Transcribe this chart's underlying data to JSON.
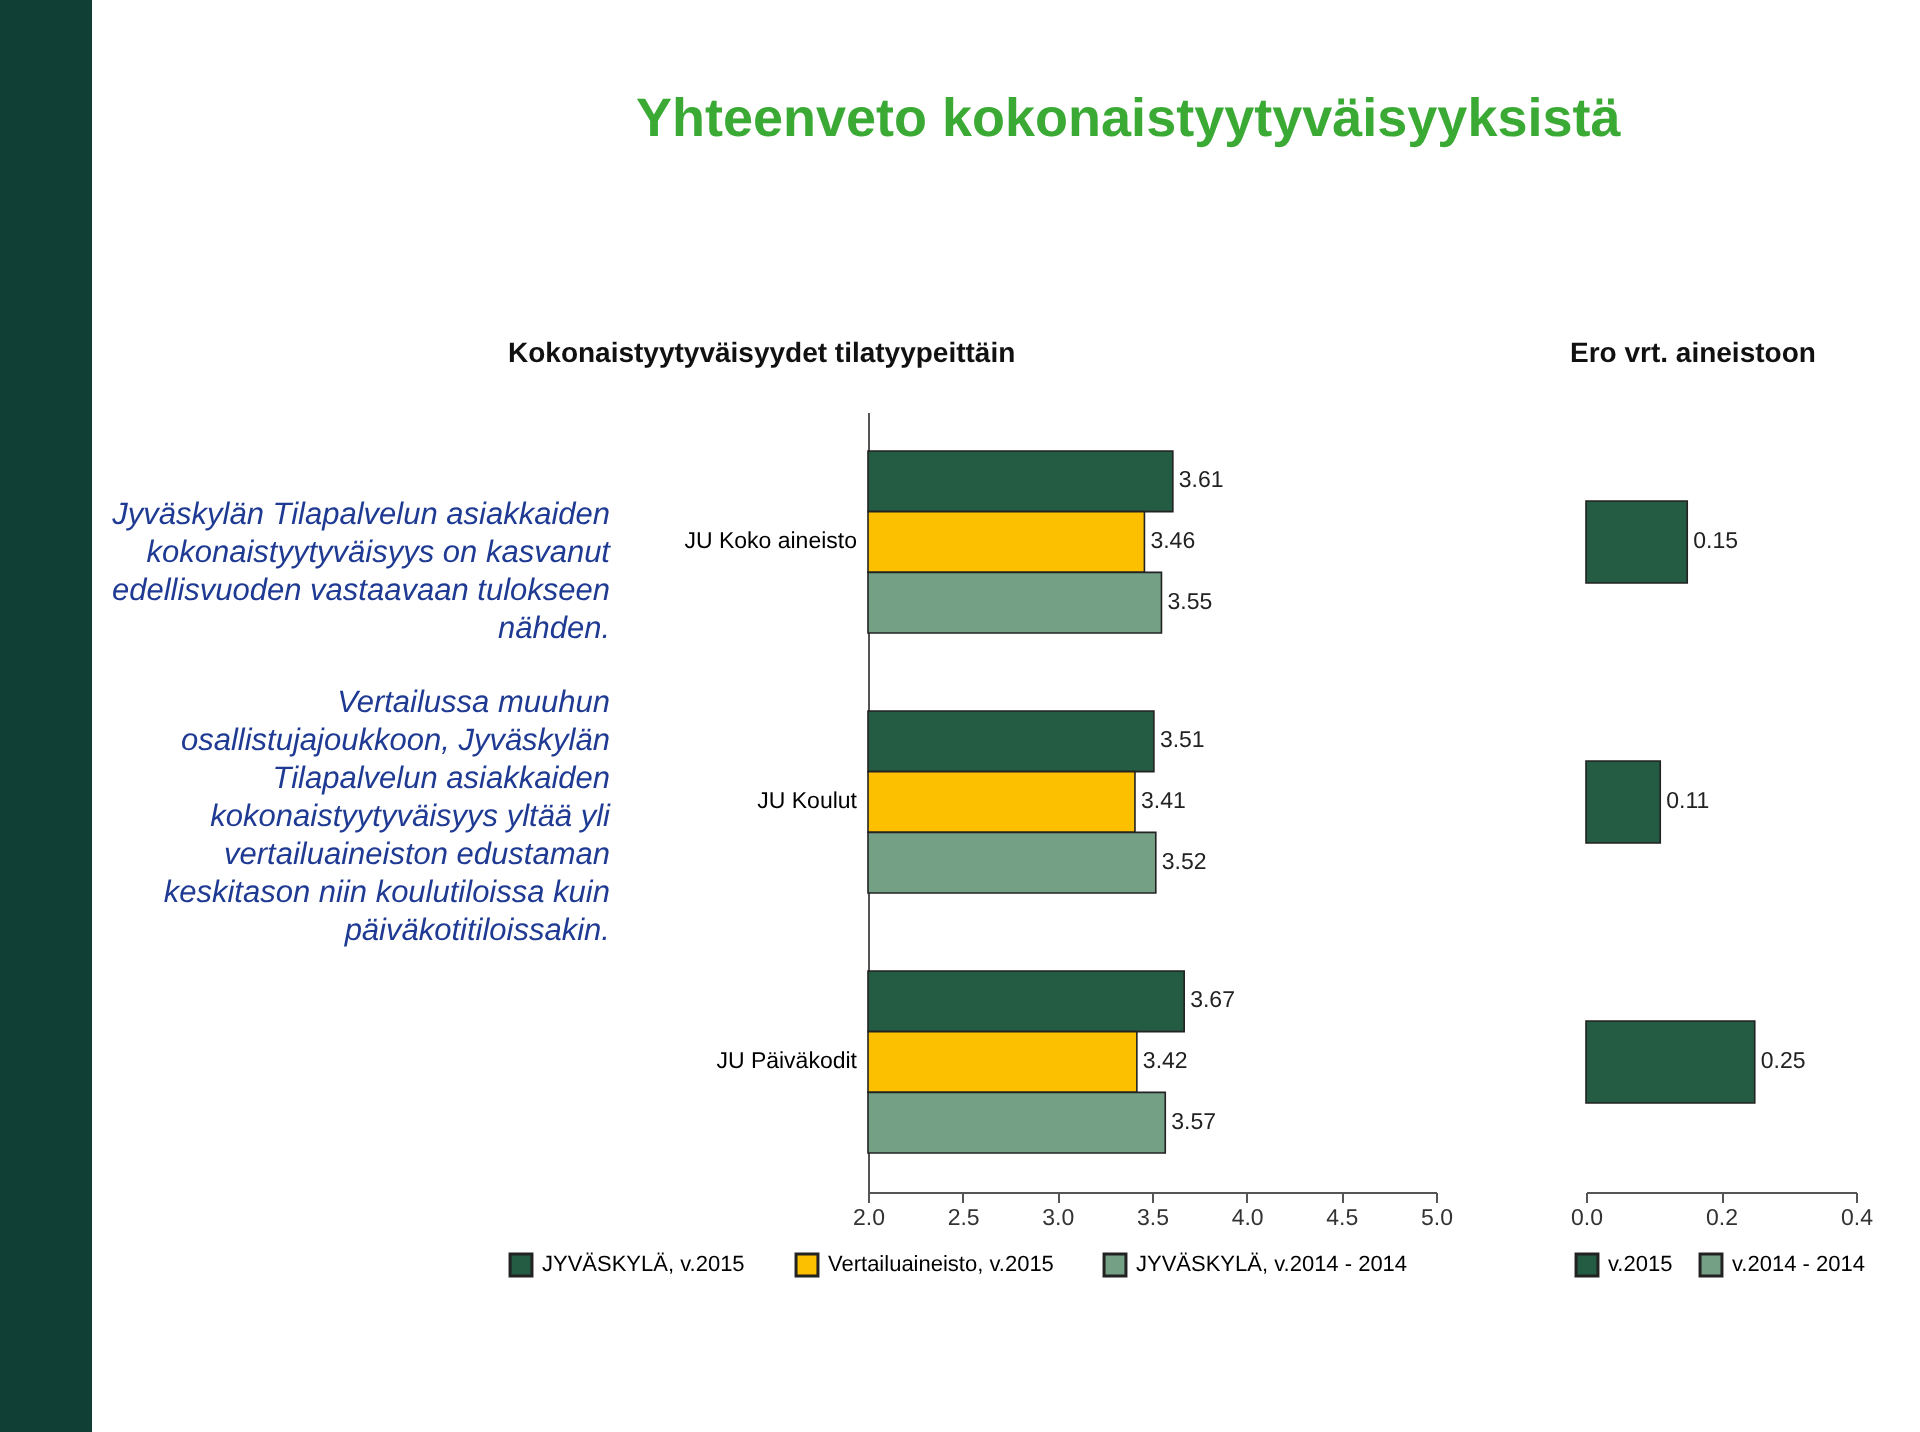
{
  "chart_data": [
    {
      "type": "bar",
      "orientation": "horizontal",
      "title": "Yhteenveto kokonaistyytyväisyyksistä",
      "subtitle": "Kokonaistyytyväisyydet tilatyypeittäin",
      "annotations": [
        "Jyväskylän Tilapalvelun asiakkaiden kokonaistyytyväisyys on kasvanut edellisvuoden vastaavaan tulokseen nähden.",
        "Vertailussa muuhun osallistujajoukkoon, Jyväskylän Tilapalvelun asiakkaiden kokonaistyytyväisyys yltää yli vertailuaineiston edustaman keskitason niin koulutiloissa kuin päiväkotitiloissakin."
      ],
      "categories": [
        "JU Koko aineisto",
        "JU Koulut",
        "JU Päiväkodit"
      ],
      "series": [
        {
          "name": "JYVÄSKYLÄ, v.2015",
          "color": "#245b43",
          "values": [
            3.61,
            3.51,
            3.67
          ]
        },
        {
          "name": "Vertailuaineisto, v.2015",
          "color": "#fcc000",
          "values": [
            3.46,
            3.41,
            3.42
          ]
        },
        {
          "name": "JYVÄSKYLÄ, v.2014 - 2014",
          "color": "#74a086",
          "values": [
            3.55,
            3.52,
            3.57
          ]
        }
      ],
      "xlim": [
        2,
        5
      ],
      "xticks": [
        {
          "value": 2,
          "label": "2.0"
        },
        {
          "value": 2.5,
          "label": "2.5"
        },
        {
          "value": 3,
          "label": "3.0"
        },
        {
          "value": 3.5,
          "label": "3.5"
        },
        {
          "value": 4,
          "label": "4.0"
        },
        {
          "value": 4.5,
          "label": "4.5"
        },
        {
          "value": 5,
          "label": "5.0"
        }
      ],
      "data_labels": true,
      "legend": "bottom"
    },
    {
      "type": "bar",
      "orientation": "horizontal",
      "title": "Ero vrt. aineistoon",
      "categories": [
        null,
        null,
        null
      ],
      "series": [
        {
          "name": "v.2015",
          "color": "#245b43",
          "values": [
            0.15,
            0.11,
            0.25
          ]
        },
        {
          "name": "v.2014 - 2014",
          "color": "#74a086",
          "values": [
            null,
            null,
            null
          ]
        }
      ],
      "xlim": [
        0,
        0.4
      ],
      "xticks": [
        {
          "value": 0,
          "label": "0.0"
        },
        {
          "value": 0.2,
          "label": "0.2"
        },
        {
          "value": 0.4,
          "label": "0.4"
        }
      ],
      "data_labels": true,
      "legend": "bottom"
    }
  ]
}
